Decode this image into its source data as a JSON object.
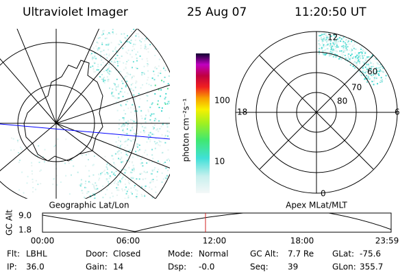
{
  "header": {
    "instrument": "Ultraviolet Imager",
    "date": "25 Aug 07",
    "time": "11:20:50 UT"
  },
  "left_panel": {
    "label": "Geographic Lat/Lon"
  },
  "colorbar": {
    "unit": "photon cm⁻²s⁻¹",
    "ticks": [
      "100",
      "10"
    ]
  },
  "right_panel": {
    "label": "Apex MLat/MLT",
    "mlt_labels": [
      "12",
      "18",
      "6",
      "0"
    ],
    "lat_labels": [
      "60",
      "70",
      "80"
    ]
  },
  "altitude_plot": {
    "axis_label": "GC Alt",
    "y_ticks": [
      "9.0",
      "1.8"
    ],
    "x_ticks": [
      "00:00",
      "06:00",
      "12:00",
      "18:00",
      "23:59"
    ]
  },
  "status": [
    [
      {
        "label": "Flt:",
        "value": "LBHL"
      },
      {
        "label": "Door:",
        "value": "Closed"
      },
      {
        "label": "Mode:",
        "value": "Normal"
      },
      {
        "label": "GC Alt:",
        "value": "7.7 Re"
      },
      {
        "label": "GLat:",
        "value": "-75.6"
      }
    ],
    [
      {
        "label": "IP:",
        "value": "36.0"
      },
      {
        "label": "Gain:",
        "value": "14"
      },
      {
        "label": "Dsp:",
        "value": "-0.0"
      },
      {
        "label": "Seq:",
        "value": "39"
      },
      {
        "label": "GLon:",
        "value": "355.7"
      }
    ]
  ]
}
